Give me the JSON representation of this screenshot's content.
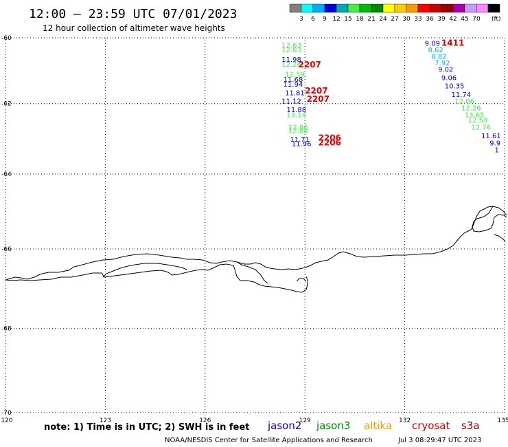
{
  "header": {
    "title": "12:00 – 23:59 UTC 07/01/2023",
    "subtitle": "12 hour collection of altimeter wave heights"
  },
  "color_scale": {
    "colors": [
      "#808080",
      "#00ffff",
      "#00aaff",
      "#0000dd",
      "#00aaaa",
      "#44ee44",
      "#00bb00",
      "#008800",
      "#ffff00",
      "#ffcc00",
      "#ff9900",
      "#ff0000",
      "#cc0000",
      "#990000",
      "#aa00aa",
      "#cc99ff",
      "#ff88ff",
      "#000000"
    ],
    "labels": [
      "3",
      "6",
      "9",
      "12",
      "15",
      "18",
      "21",
      "24",
      "27",
      "30",
      "33",
      "36",
      "39",
      "42",
      "45",
      "70"
    ],
    "unit": "(ft)"
  },
  "axes": {
    "lat_ticks": [
      "-60",
      "-62",
      "-64",
      "-66",
      "-68",
      "-70"
    ],
    "lon_ticks": [
      "120",
      "123",
      "126",
      "129",
      "132",
      "135"
    ]
  },
  "tracks": [
    {
      "lat": -60.3,
      "lon": 128.3,
      "text": "12.63",
      "color": "#44ee44"
    },
    {
      "lat": -60.45,
      "lon": 128.3,
      "text": "12.83",
      "color": "#44ee44"
    },
    {
      "lat": -60.75,
      "lon": 128.3,
      "text": "11.98",
      "color": "#0000dd"
    },
    {
      "lat": -60.9,
      "lon": 128.3,
      "text": "12.26",
      "color": "#44ee44"
    },
    {
      "lat": -61.2,
      "lon": 128.4,
      "text": "12.39",
      "color": "#44ee44"
    },
    {
      "lat": -61.35,
      "lon": 128.35,
      "text": "11.68",
      "color": "#0000dd"
    },
    {
      "lat": -61.5,
      "lon": 128.35,
      "text": "11.94",
      "color": "#0000dd"
    },
    {
      "lat": -61.75,
      "lon": 128.4,
      "text": "11.81",
      "color": "#0000dd"
    },
    {
      "lat": -62.0,
      "lon": 128.3,
      "text": "11.12",
      "color": "#0000dd"
    },
    {
      "lat": -62.25,
      "lon": 128.45,
      "text": "11.88",
      "color": "#0000dd"
    },
    {
      "lat": -62.4,
      "lon": 128.45,
      "text": "13.14",
      "color": "#44ee44"
    },
    {
      "lat": -62.75,
      "lon": 128.5,
      "text": "12.86",
      "color": "#44ee44"
    },
    {
      "lat": -62.85,
      "lon": 128.5,
      "text": "12.88",
      "color": "#44ee44"
    },
    {
      "lat": -63.1,
      "lon": 128.55,
      "text": "11.71",
      "color": "#0000dd"
    },
    {
      "lat": -63.22,
      "lon": 128.6,
      "text": "11.96",
      "color": "#0000dd"
    },
    {
      "lat": -60.25,
      "lon": 132.6,
      "text": "9.09",
      "color": "#0000dd"
    },
    {
      "lat": -60.45,
      "lon": 132.7,
      "text": "8.62",
      "color": "#00aaff"
    },
    {
      "lat": -60.65,
      "lon": 132.8,
      "text": "8.82",
      "color": "#00aaff"
    },
    {
      "lat": -60.85,
      "lon": 132.9,
      "text": "7.92",
      "color": "#00aaff"
    },
    {
      "lat": -61.05,
      "lon": 133.0,
      "text": "9.02",
      "color": "#0000dd"
    },
    {
      "lat": -61.3,
      "lon": 133.1,
      "text": "9.06",
      "color": "#0000dd"
    },
    {
      "lat": -61.55,
      "lon": 133.2,
      "text": "10.35",
      "color": "#0000dd"
    },
    {
      "lat": -61.8,
      "lon": 133.4,
      "text": "11.74",
      "color": "#0000dd"
    },
    {
      "lat": -62.0,
      "lon": 133.5,
      "text": "12.06",
      "color": "#44ee44"
    },
    {
      "lat": -62.2,
      "lon": 133.7,
      "text": "12.26",
      "color": "#44ee44"
    },
    {
      "lat": -62.4,
      "lon": 133.8,
      "text": "13.65",
      "color": "#44ee44"
    },
    {
      "lat": -62.55,
      "lon": 133.9,
      "text": "12.59",
      "color": "#44ee44"
    },
    {
      "lat": -62.75,
      "lon": 134.0,
      "text": "12.76",
      "color": "#44ee44"
    },
    {
      "lat": -63.0,
      "lon": 134.3,
      "text": "11.61",
      "color": "#0000dd"
    },
    {
      "lat": -63.2,
      "lon": 134.55,
      "text": "9.9",
      "color": "#0000dd"
    },
    {
      "lat": -63.4,
      "lon": 134.7,
      "text": "1",
      "color": "#0000dd"
    }
  ],
  "pass_labels": [
    {
      "lat": -60.92,
      "lon": 128.8,
      "text": "2207",
      "color": "#e00000"
    },
    {
      "lat": -61.7,
      "lon": 129.0,
      "text": "2207",
      "color": "#e00000"
    },
    {
      "lat": -61.95,
      "lon": 129.05,
      "text": "2207",
      "color": "#e00000"
    },
    {
      "lat": -63.07,
      "lon": 129.4,
      "text": "2206",
      "color": "#e00000"
    },
    {
      "lat": -63.2,
      "lon": 129.4,
      "text": "2206",
      "color": "#e00000"
    },
    {
      "lat": -60.25,
      "lon": 133.1,
      "text": "1411",
      "color": "#8b0000"
    },
    {
      "lat": -62.55,
      "lon": 135.1,
      "text": "1",
      "color": "#8b0000"
    }
  ],
  "footer": {
    "note": "note:  1) Time is in UTC;  2) SWH is in feet",
    "satellites": [
      {
        "name": "jason2",
        "color": "#0000dd"
      },
      {
        "name": "jason3",
        "color": "#008800"
      },
      {
        "name": "altika",
        "color": "#ff9900"
      },
      {
        "name": "cryosat",
        "color": "#cc0000"
      },
      {
        "name": "s3a",
        "color": "#990000"
      }
    ],
    "credit": "NOAA/NESDIS Center for Satellite Applications and Research",
    "timestamp": "Jul  3 08:29:47 UTC 2023"
  }
}
